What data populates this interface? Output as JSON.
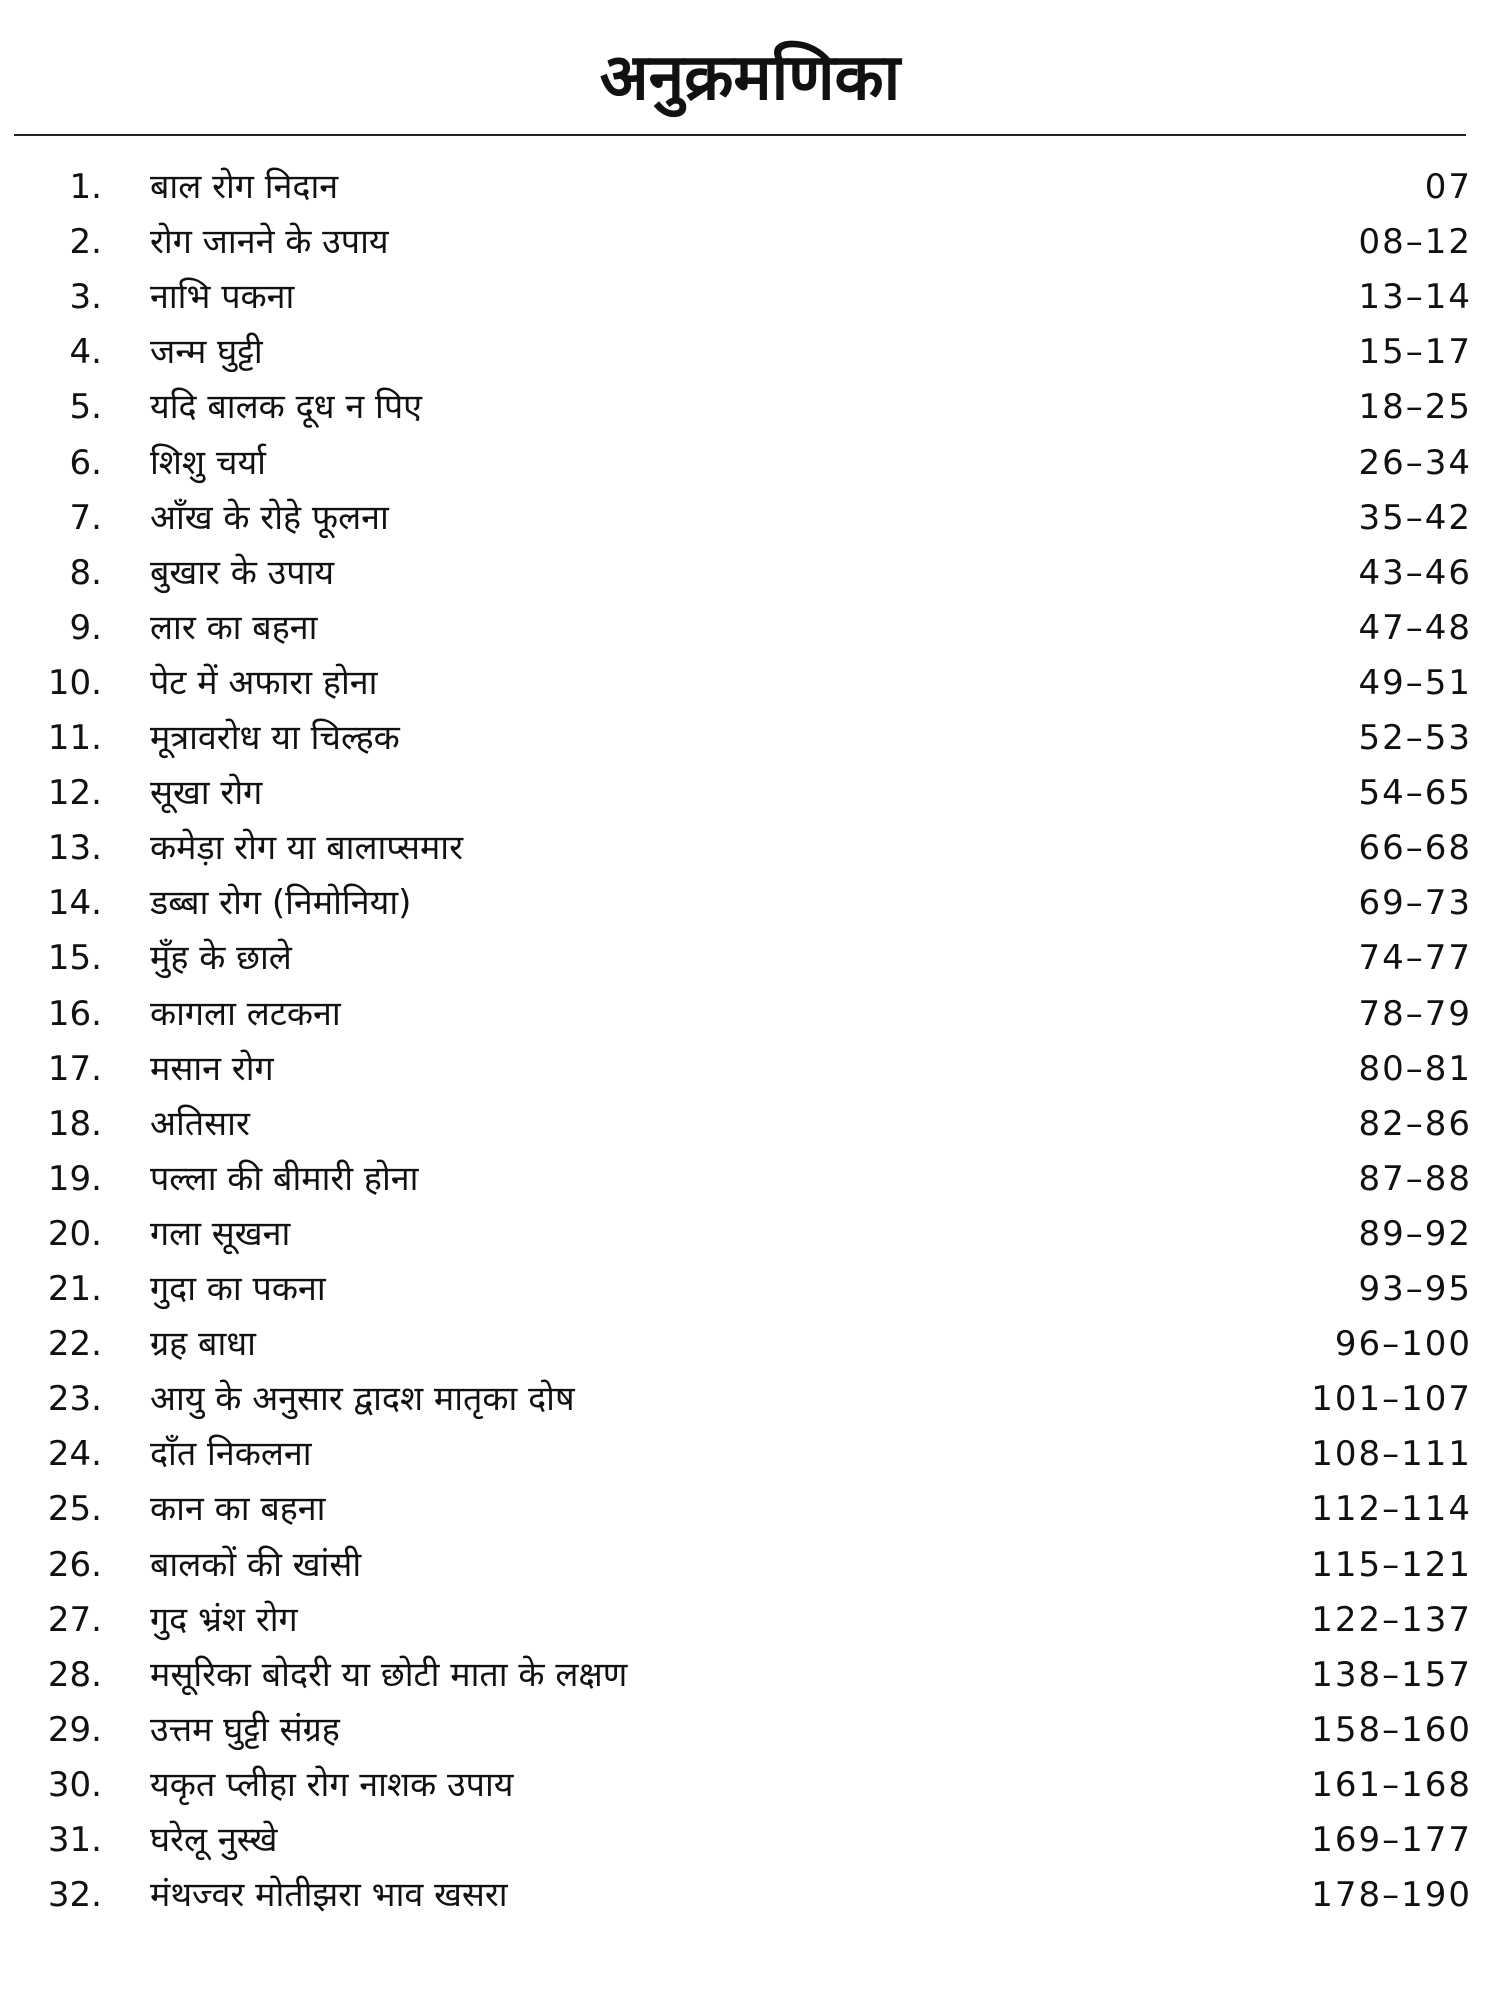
{
  "title": "अनुक्रमणिका",
  "entries": [
    {
      "num": "1.",
      "topic": "बाल रोग निदान",
      "pages": "07"
    },
    {
      "num": "2.",
      "topic": "रोग जानने के उपाय",
      "pages": "08–12"
    },
    {
      "num": "3.",
      "topic": "नाभि पकना",
      "pages": "13–14"
    },
    {
      "num": "4.",
      "topic": "जन्म घुट्टी",
      "pages": "15–17"
    },
    {
      "num": "5.",
      "topic": "यदि बालक दूध न पिए",
      "pages": "18–25"
    },
    {
      "num": "6.",
      "topic": "शिशु चर्या",
      "pages": "26–34"
    },
    {
      "num": "7.",
      "topic": "आँख के रोहे फूलना",
      "pages": "35–42"
    },
    {
      "num": "8.",
      "topic": "बुखार के उपाय",
      "pages": "43–46"
    },
    {
      "num": "9.",
      "topic": "लार का बहना",
      "pages": "47–48"
    },
    {
      "num": "10.",
      "topic": "पेट में अफारा होना",
      "pages": "49–51"
    },
    {
      "num": "11.",
      "topic": "मूत्रावरोध या चिल्हक",
      "pages": "52–53"
    },
    {
      "num": "12.",
      "topic": "सूखा रोग",
      "pages": "54–65"
    },
    {
      "num": "13.",
      "topic": "कमेड़ा रोग या बालाप्समार",
      "pages": "66–68"
    },
    {
      "num": "14.",
      "topic": "डब्बा रोग (निमोनिया)",
      "pages": "69–73"
    },
    {
      "num": "15.",
      "topic": "मुँह के छाले",
      "pages": "74–77"
    },
    {
      "num": "16.",
      "topic": "कागला लटकना",
      "pages": "78–79"
    },
    {
      "num": "17.",
      "topic": "मसान रोग",
      "pages": "80–81"
    },
    {
      "num": "18.",
      "topic": "अतिसार",
      "pages": "82–86"
    },
    {
      "num": "19.",
      "topic": "पल्ला की बीमारी होना",
      "pages": "87–88"
    },
    {
      "num": "20.",
      "topic": "गला सूखना",
      "pages": "89–92"
    },
    {
      "num": "21.",
      "topic": "गुदा का पकना",
      "pages": "93–95"
    },
    {
      "num": "22.",
      "topic": "ग्रह बाधा",
      "pages": "96–100"
    },
    {
      "num": "23.",
      "topic": "आयु के अनुसार द्वादश मातृका दोष",
      "pages": "101–107"
    },
    {
      "num": "24.",
      "topic": "दाँत निकलना",
      "pages": "108–111"
    },
    {
      "num": "25.",
      "topic": "कान का बहना",
      "pages": "112–114"
    },
    {
      "num": "26.",
      "topic": "बालकों की खांसी",
      "pages": "115–121"
    },
    {
      "num": "27.",
      "topic": "गुद भ्रंश रोग",
      "pages": "122–137"
    },
    {
      "num": "28.",
      "topic": "मसूरिका बोदरी या छोटी माता के लक्षण",
      "pages": "138–157"
    },
    {
      "num": "29.",
      "topic": "उत्तम घुट्टी संग्रह",
      "pages": "158–160"
    },
    {
      "num": "30.",
      "topic": "यकृत प्लीहा रोग नाशक उपाय",
      "pages": "161–168"
    },
    {
      "num": "31.",
      "topic": "घरेलू नुस्खे",
      "pages": "169–177"
    },
    {
      "num": "32.",
      "topic": "मंथज्वर मोतीझरा भाव खसरा",
      "pages": "178–190"
    }
  ]
}
